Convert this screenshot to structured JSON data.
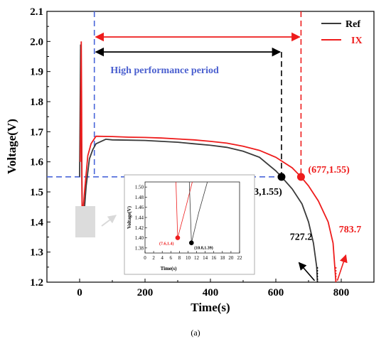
{
  "chart_data": {
    "type": "line",
    "xlabel": "Time(s)",
    "ylabel": "Voltage(V)",
    "xlim": [
      -100,
      900
    ],
    "ylim": [
      1.2,
      2.1
    ],
    "xticks": [
      0,
      200,
      400,
      600,
      800
    ],
    "yticks": [
      1.2,
      1.3,
      1.4,
      1.5,
      1.6,
      1.7,
      1.8,
      1.9,
      2.0,
      2.1
    ],
    "legend_position": "top-right",
    "series": [
      {
        "name": "Ref",
        "color": "#3a3a3a",
        "points": [
          [
            0,
            1.55
          ],
          [
            3,
            1.99
          ],
          [
            5,
            1.75
          ],
          [
            8,
            1.4
          ],
          [
            10.8,
            1.39
          ],
          [
            20,
            1.52
          ],
          [
            30,
            1.61
          ],
          [
            40,
            1.64
          ],
          [
            50,
            1.66
          ],
          [
            80,
            1.675
          ],
          [
            100,
            1.673
          ],
          [
            150,
            1.672
          ],
          [
            200,
            1.671
          ],
          [
            250,
            1.668
          ],
          [
            300,
            1.665
          ],
          [
            350,
            1.66
          ],
          [
            400,
            1.655
          ],
          [
            450,
            1.648
          ],
          [
            500,
            1.635
          ],
          [
            550,
            1.615
          ],
          [
            600,
            1.57
          ],
          [
            617.3,
            1.55
          ],
          [
            650,
            1.51
          ],
          [
            680,
            1.46
          ],
          [
            700,
            1.4
          ],
          [
            715,
            1.33
          ],
          [
            725,
            1.25
          ],
          [
            727.2,
            1.2
          ]
        ]
      },
      {
        "name": "IX",
        "color": "#ee1c1c",
        "points": [
          [
            2,
            1.6
          ],
          [
            5,
            2.0
          ],
          [
            6,
            1.8
          ],
          [
            7.6,
            1.4
          ],
          [
            15,
            1.5
          ],
          [
            25,
            1.62
          ],
          [
            35,
            1.66
          ],
          [
            50,
            1.685
          ],
          [
            100,
            1.684
          ],
          [
            150,
            1.682
          ],
          [
            200,
            1.681
          ],
          [
            250,
            1.679
          ],
          [
            300,
            1.676
          ],
          [
            350,
            1.673
          ],
          [
            400,
            1.668
          ],
          [
            450,
            1.662
          ],
          [
            500,
            1.652
          ],
          [
            550,
            1.638
          ],
          [
            600,
            1.615
          ],
          [
            650,
            1.58
          ],
          [
            677,
            1.55
          ],
          [
            700,
            1.52
          ],
          [
            730,
            1.47
          ],
          [
            760,
            1.4
          ],
          [
            775,
            1.33
          ],
          [
            783.7,
            1.2
          ]
        ]
      }
    ],
    "annotations": {
      "high_performance_label": "High performance period",
      "ref_point_label": "(617.3,1.55)",
      "ix_point_label": "(677,1.55)",
      "ref_end_label": "727.2",
      "ix_end_label": "783.7",
      "reference_voltage": 1.55,
      "start_time": 45,
      "ref_cross_time": 617.3,
      "ix_cross_time": 677,
      "ref_end_time": 727.2,
      "ix_end_time": 783.7
    },
    "inset": {
      "xlabel": "Time(s)",
      "ylabel": "Voltage(V)",
      "xlim": [
        0,
        22
      ],
      "ylim": [
        1.37,
        1.51
      ],
      "xticks": [
        0,
        2,
        4,
        6,
        8,
        10,
        12,
        14,
        16,
        18,
        20,
        22
      ],
      "yticks": [
        1.38,
        1.4,
        1.42,
        1.44,
        1.46,
        1.48,
        1.5
      ],
      "ix_min_label": "(7.6,1.4)",
      "ref_min_label": "(10.8,1.39)",
      "ix_series": [
        [
          7.2,
          1.51
        ],
        [
          7.6,
          1.4
        ],
        [
          9.5,
          1.46
        ],
        [
          11,
          1.51
        ]
      ],
      "ref_series": [
        [
          10.3,
          1.51
        ],
        [
          10.8,
          1.39
        ],
        [
          12.5,
          1.45
        ],
        [
          14.5,
          1.51
        ]
      ]
    }
  },
  "caption": "(a)"
}
